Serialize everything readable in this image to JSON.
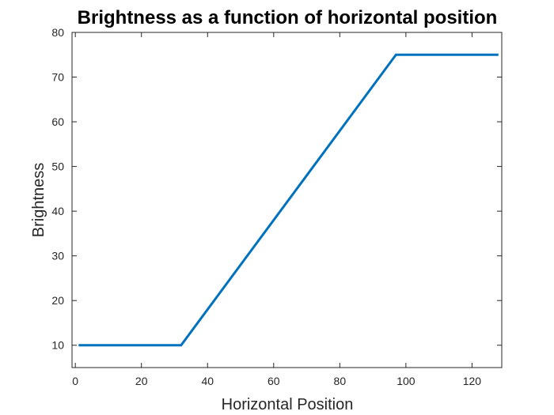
{
  "chart_data": {
    "type": "line",
    "title": "Brightness as a function of horizontal position",
    "xlabel": "Horizontal Position",
    "ylabel": "Brightness",
    "xlim": [
      -1,
      129
    ],
    "ylim": [
      5,
      80
    ],
    "xticks": [
      0,
      20,
      40,
      60,
      80,
      100,
      120
    ],
    "yticks": [
      10,
      20,
      30,
      40,
      50,
      60,
      70,
      80
    ],
    "grid": false,
    "series": [
      {
        "color": "#0072BD",
        "x": [
          1,
          32,
          97,
          128
        ],
        "y": [
          10,
          10,
          75,
          75
        ]
      }
    ]
  }
}
